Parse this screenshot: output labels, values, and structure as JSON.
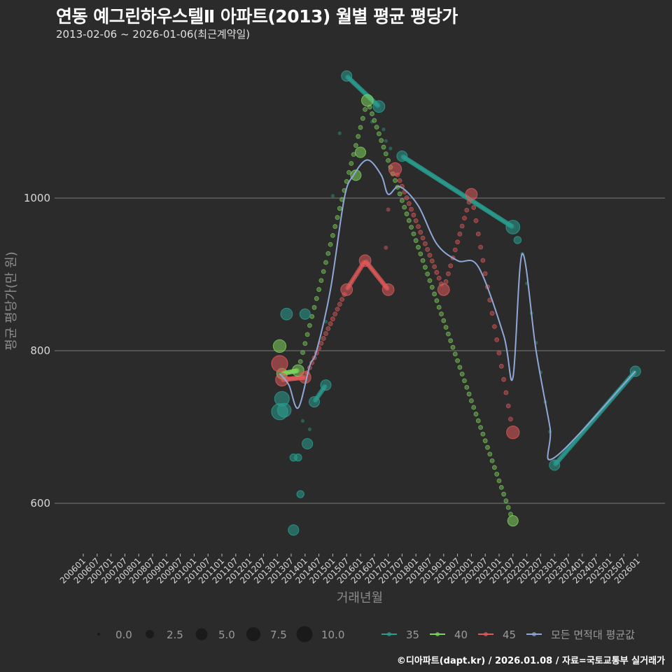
{
  "header": {
    "title": "연동 예그린하우스텔Ⅱ  아파트(2013) 월별 평균 평당가",
    "subtitle": "2013-02-06 ~ 2026-01-06(최근계약일)"
  },
  "caption": "©디아파트(dapt.kr) / 2026.01.08 / 자료=국토교통부 실거래가",
  "colors": {
    "background": "#2b2b2b",
    "grid": "#6a6a6a",
    "area35": "#2a9d8f",
    "area40": "#7fd35c",
    "area45": "#e05a5a",
    "average": "#8fa8d8"
  },
  "chart_data": {
    "type": "scatter",
    "title": "연동 예그린하우스텔Ⅱ  아파트(2013) 월별 평균 평당가",
    "subtitle": "2013-02-06 ~ 2026-01-06(최근계약일)",
    "xlabel": "거래년월",
    "ylabel": "평균 평당가(만 원)",
    "ylim": [
      530,
      1190
    ],
    "yticks": [
      600,
      800,
      1000
    ],
    "grid": true,
    "x_ticks": [
      "200601",
      "200607",
      "200701",
      "200707",
      "200801",
      "200807",
      "200901",
      "200907",
      "201001",
      "201007",
      "201101",
      "201107",
      "201201",
      "201207",
      "201301",
      "201307",
      "201401",
      "201407",
      "201501",
      "201507",
      "201601",
      "201607",
      "201701",
      "201707",
      "201801",
      "201807",
      "201901",
      "201907",
      "202001",
      "202007",
      "202101",
      "202107",
      "202201",
      "202207",
      "202301",
      "202307",
      "202401",
      "202407",
      "202501",
      "202507",
      "202601"
    ],
    "size_legend": {
      "title": "",
      "values": [
        0.0,
        2.5,
        5.0,
        7.5,
        10.0
      ],
      "labels": [
        "0.0",
        "2.5",
        "5.0",
        "7.5",
        "10.0"
      ]
    },
    "legend": {
      "position": "bottom",
      "entries": [
        "35",
        "40",
        "45",
        "모든 면적대 평균값"
      ]
    },
    "series": [
      {
        "name": "35",
        "color": "#2a9d8f",
        "points": [
          {
            "x": "2013-02",
            "y": 720,
            "size": 9
          },
          {
            "x": "2013-03",
            "y": 737,
            "size": 7
          },
          {
            "x": "2013-04",
            "y": 722,
            "size": 6
          },
          {
            "x": "2013-05",
            "y": 848,
            "size": 4
          },
          {
            "x": "2013-08",
            "y": 660,
            "size": 1
          },
          {
            "x": "2013-08",
            "y": 565,
            "size": 3
          },
          {
            "x": "2013-10",
            "y": 660,
            "size": 1
          },
          {
            "x": "2013-11",
            "y": 612,
            "size": 1
          },
          {
            "x": "2014-01",
            "y": 848,
            "size": 3
          },
          {
            "x": "2014-02",
            "y": 678,
            "size": 3
          },
          {
            "x": "2014-05",
            "y": 733,
            "size": 3
          },
          {
            "x": "2014-10",
            "y": 755,
            "size": 3
          },
          {
            "x": "2015-07",
            "y": 1160,
            "size": 3
          },
          {
            "x": "2016-09",
            "y": 1120,
            "size": 4
          },
          {
            "x": "2017-07",
            "y": 1055,
            "size": 3
          },
          {
            "x": "2021-07",
            "y": 962,
            "size": 6
          },
          {
            "x": "2021-09",
            "y": 945,
            "size": 1
          },
          {
            "x": "2023-01",
            "y": 650,
            "size": 3
          },
          {
            "x": "2025-12",
            "y": 773,
            "size": 3
          }
        ]
      },
      {
        "name": "40",
        "color": "#7fd35c",
        "points": [
          {
            "x": "2013-02",
            "y": 806,
            "size": 5
          },
          {
            "x": "2013-03",
            "y": 770,
            "size": 3
          },
          {
            "x": "2013-10",
            "y": 774,
            "size": 4
          },
          {
            "x": "2016-01",
            "y": 1060,
            "size": 3
          },
          {
            "x": "2016-04",
            "y": 1128,
            "size": 4
          },
          {
            "x": "2015-11",
            "y": 1030,
            "size": 3
          },
          {
            "x": "2021-07",
            "y": 577,
            "size": 3
          }
        ]
      },
      {
        "name": "45",
        "color": "#e05a5a",
        "points": [
          {
            "x": "2013-02",
            "y": 783,
            "size": 9
          },
          {
            "x": "2013-03",
            "y": 762,
            "size": 5
          },
          {
            "x": "2014-01",
            "y": 765,
            "size": 4
          },
          {
            "x": "2015-07",
            "y": 880,
            "size": 4
          },
          {
            "x": "2016-03",
            "y": 918,
            "size": 4
          },
          {
            "x": "2017-01",
            "y": 880,
            "size": 4
          },
          {
            "x": "2017-04",
            "y": 1038,
            "size": 5
          },
          {
            "x": "2019-01",
            "y": 880,
            "size": 4
          },
          {
            "x": "2020-01",
            "y": 1005,
            "size": 4
          },
          {
            "x": "2021-07",
            "y": 693,
            "size": 5
          }
        ]
      },
      {
        "name": "모든 면적대 평균값",
        "color": "#8fa8d8",
        "points": [
          {
            "x": "2013-02",
            "y": 770
          },
          {
            "x": "2013-06",
            "y": 755
          },
          {
            "x": "2013-10",
            "y": 725
          },
          {
            "x": "2014-03",
            "y": 780
          },
          {
            "x": "2014-06",
            "y": 800
          },
          {
            "x": "2014-12",
            "y": 880
          },
          {
            "x": "2015-06",
            "y": 1000
          },
          {
            "x": "2015-10",
            "y": 1030
          },
          {
            "x": "2016-04",
            "y": 1050
          },
          {
            "x": "2016-10",
            "y": 1030
          },
          {
            "x": "2017-01",
            "y": 1005
          },
          {
            "x": "2017-06",
            "y": 1015
          },
          {
            "x": "2018-02",
            "y": 990
          },
          {
            "x": "2018-10",
            "y": 940
          },
          {
            "x": "2019-07",
            "y": 918
          },
          {
            "x": "2020-04",
            "y": 910
          },
          {
            "x": "2021-03",
            "y": 820
          },
          {
            "x": "2021-07",
            "y": 765
          },
          {
            "x": "2021-11",
            "y": 927
          },
          {
            "x": "2022-05",
            "y": 800
          },
          {
            "x": "2022-11",
            "y": 700
          },
          {
            "x": "2023-01",
            "y": 660
          },
          {
            "x": "2025-12",
            "y": 773
          }
        ]
      }
    ]
  },
  "axes": {
    "xlabel": "거래년월",
    "ylabel": "평균 평당가(만 원)",
    "yticks": [
      "600",
      "800",
      "1000"
    ]
  },
  "legend": {
    "size": [
      "0.0",
      "2.5",
      "5.0",
      "7.5",
      "10.0"
    ],
    "color": [
      "35",
      "40",
      "45",
      "모든 면적대 평균값"
    ]
  }
}
